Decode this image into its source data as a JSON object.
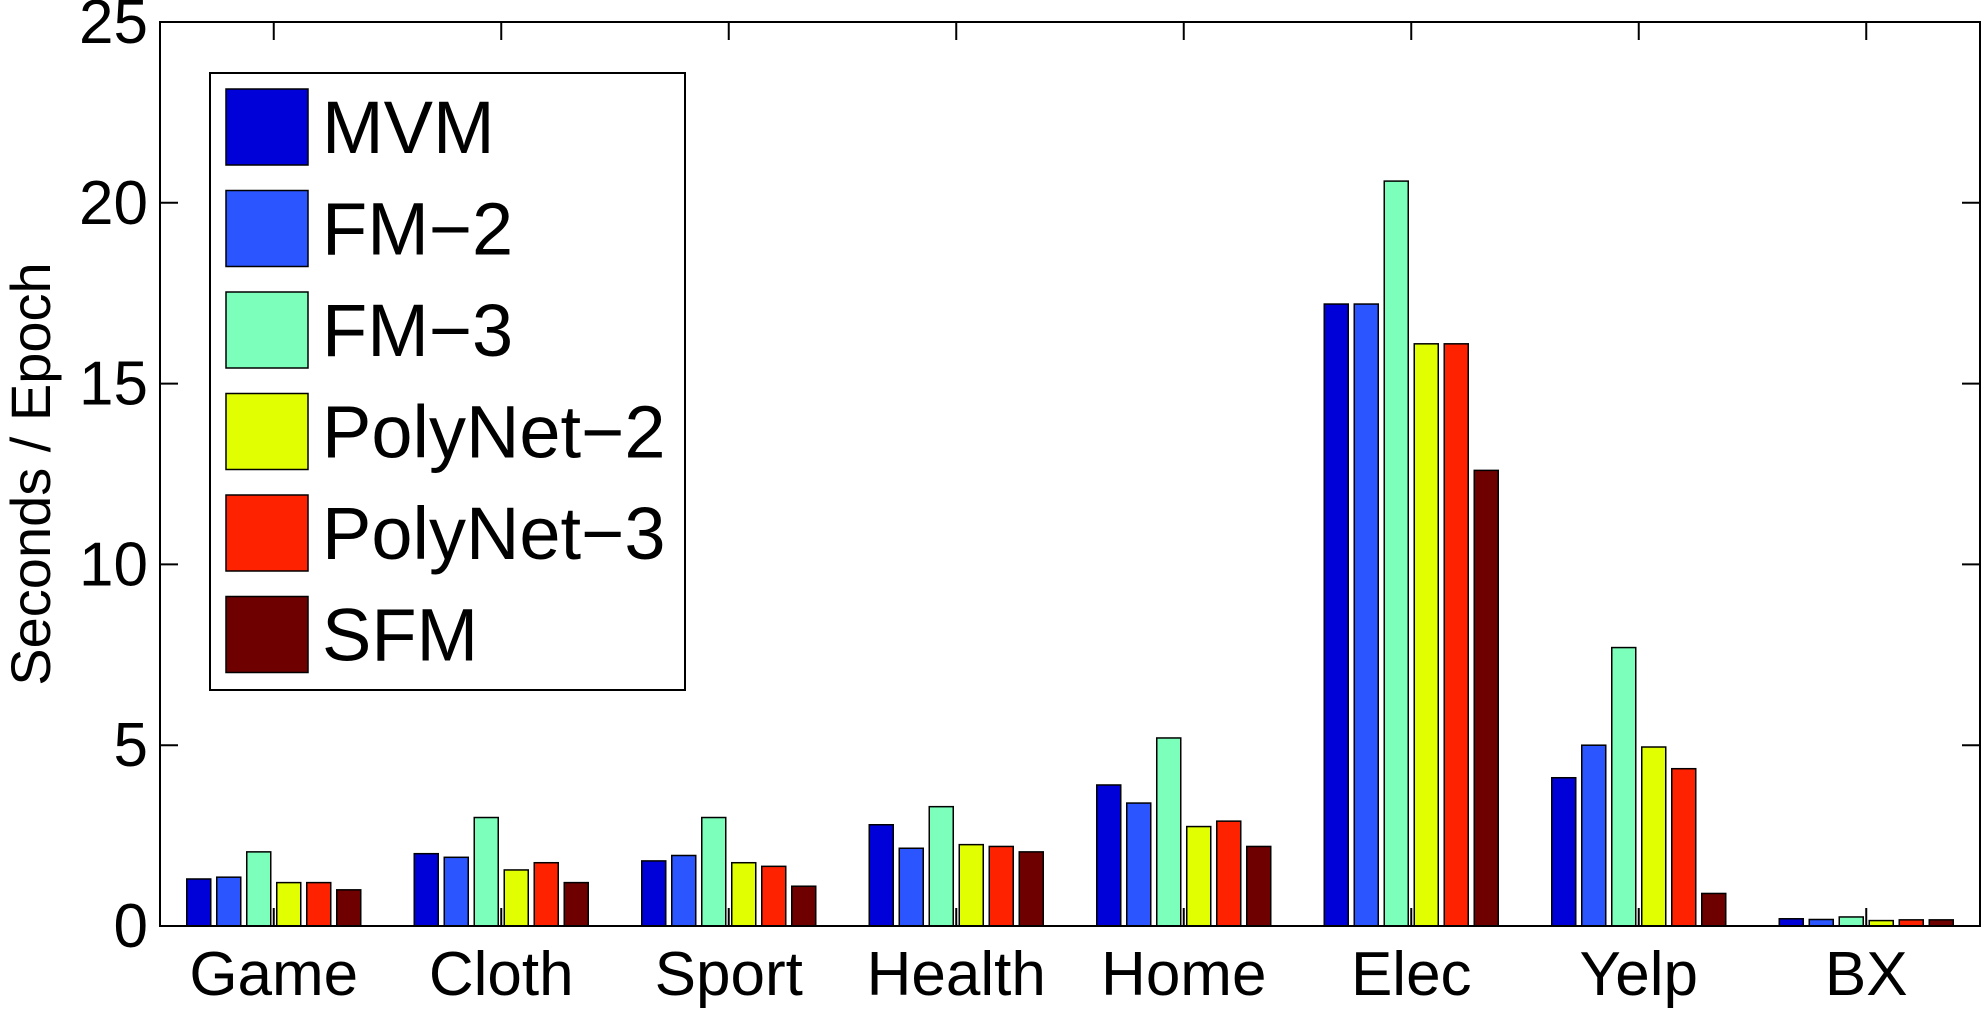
{
  "chart_data": {
    "type": "bar",
    "title": "",
    "xlabel": "",
    "ylabel": "Seconds / Epoch",
    "ylim": [
      0,
      25
    ],
    "yticks": [
      0,
      5,
      10,
      15,
      20,
      25
    ],
    "grid": false,
    "legend_position": "top-left",
    "categories": [
      "Game",
      "Cloth",
      "Sport",
      "Health",
      "Home",
      "Elec",
      "Yelp",
      "BX"
    ],
    "series": [
      {
        "name": "MVM",
        "color": "#0000d9",
        "values": [
          1.3,
          2.0,
          1.8,
          2.8,
          3.9,
          17.2,
          4.1,
          0.2
        ]
      },
      {
        "name": "FM−2",
        "color": "#2b55ff",
        "values": [
          1.35,
          1.9,
          1.95,
          2.15,
          3.4,
          17.2,
          5.0,
          0.18
        ]
      },
      {
        "name": "FM−3",
        "color": "#7dffbc",
        "values": [
          2.05,
          3.0,
          3.0,
          3.3,
          5.2,
          20.6,
          7.7,
          0.25
        ]
      },
      {
        "name": "PolyNet−2",
        "color": "#e1ff00",
        "values": [
          1.2,
          1.55,
          1.75,
          2.25,
          2.75,
          16.1,
          4.95,
          0.15
        ]
      },
      {
        "name": "PolyNet−3",
        "color": "#ff2200",
        "values": [
          1.2,
          1.75,
          1.65,
          2.2,
          2.9,
          16.1,
          4.35,
          0.17
        ]
      },
      {
        "name": "SFM",
        "color": "#6e0000",
        "values": [
          1.0,
          1.2,
          1.1,
          2.05,
          2.2,
          12.6,
          0.9,
          0.17
        ]
      }
    ]
  }
}
